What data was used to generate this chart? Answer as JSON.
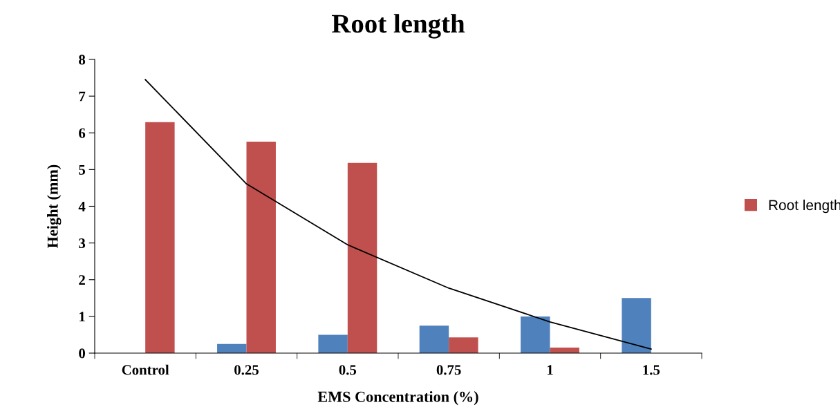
{
  "chart_data": {
    "type": "bar",
    "title": "Root length",
    "xlabel": "EMS Concentration (%)",
    "ylabel": "Height (mm)",
    "categories": [
      "Control",
      "0.25",
      "0.5",
      "0.75",
      "1",
      "1.5"
    ],
    "series": [
      {
        "color": "#4f81bd",
        "values": [
          null,
          0.25,
          0.5,
          0.75,
          1.0,
          1.5
        ]
      },
      {
        "name": "Root length",
        "color": "#c0504d",
        "values": [
          6.29,
          5.76,
          5.18,
          0.43,
          0.15,
          null
        ]
      },
      {
        "type": "line",
        "color": "#000000",
        "values": [
          7.45,
          4.61,
          2.95,
          1.77,
          0.85,
          0.11
        ]
      }
    ],
    "ylim": [
      0,
      8
    ],
    "yticks": [
      0,
      1,
      2,
      3,
      4,
      5,
      6,
      7,
      8
    ],
    "grid": false,
    "legend": "right",
    "marker": "none",
    "line_style": "solid"
  }
}
